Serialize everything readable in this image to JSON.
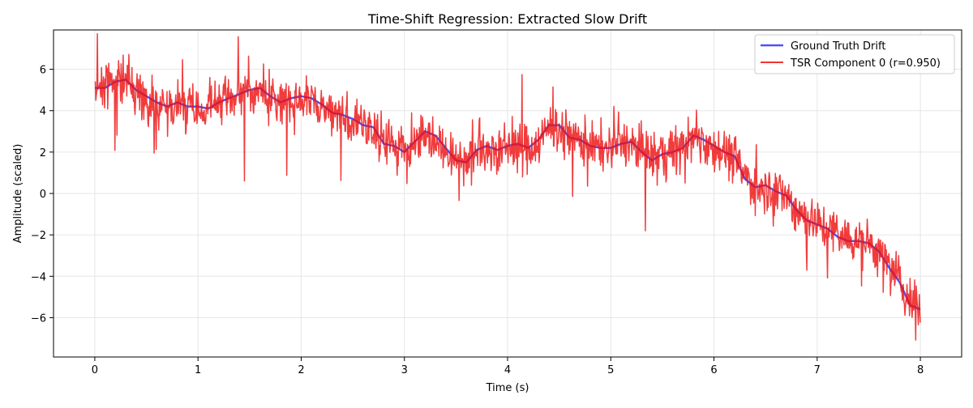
{
  "chart_data": {
    "type": "line",
    "title": "Time-Shift Regression: Extracted Slow Drift",
    "xlabel": "Time (s)",
    "ylabel": "Amplitude (scaled)",
    "xlim": [
      -0.4,
      8.4
    ],
    "ylim": [
      -7.9,
      7.9
    ],
    "grid": true,
    "legend_position": "top-right",
    "x_ticks": [
      0,
      1,
      2,
      3,
      4,
      5,
      6,
      7,
      8
    ],
    "y_ticks": [
      -6,
      -4,
      -2,
      0,
      2,
      4,
      6
    ],
    "x_tick_labels": [
      "0",
      "1",
      "2",
      "3",
      "4",
      "5",
      "6",
      "7",
      "8"
    ],
    "y_tick_labels": [
      "−6",
      "−4",
      "−2",
      "0",
      "2",
      "4",
      "6"
    ],
    "series": [
      {
        "name": "Ground Truth Drift",
        "color": "#3333ee",
        "style": "smooth",
        "x": [
          0,
          0.1,
          0.2,
          0.3,
          0.4,
          0.5,
          0.6,
          0.7,
          0.8,
          0.9,
          1.0,
          1.1,
          1.2,
          1.3,
          1.4,
          1.5,
          1.6,
          1.7,
          1.8,
          1.9,
          2.0,
          2.1,
          2.2,
          2.3,
          2.4,
          2.5,
          2.6,
          2.7,
          2.8,
          2.9,
          3.0,
          3.1,
          3.2,
          3.3,
          3.4,
          3.5,
          3.6,
          3.7,
          3.8,
          3.9,
          4.0,
          4.1,
          4.2,
          4.3,
          4.4,
          4.5,
          4.6,
          4.7,
          4.8,
          4.9,
          5.0,
          5.1,
          5.2,
          5.3,
          5.4,
          5.5,
          5.6,
          5.7,
          5.8,
          5.9,
          6.0,
          6.1,
          6.2,
          6.3,
          6.4,
          6.5,
          6.6,
          6.7,
          6.8,
          6.9,
          7.0,
          7.1,
          7.2,
          7.3,
          7.4,
          7.5,
          7.6,
          7.7,
          7.8,
          7.9,
          8.0
        ],
        "y": [
          5.1,
          5.1,
          5.4,
          5.5,
          5.0,
          4.7,
          4.4,
          4.2,
          4.4,
          4.2,
          4.2,
          4.1,
          4.4,
          4.6,
          4.8,
          5.0,
          5.1,
          4.7,
          4.4,
          4.6,
          4.7,
          4.6,
          4.3,
          3.9,
          3.8,
          3.6,
          3.3,
          3.2,
          2.4,
          2.3,
          2.0,
          2.5,
          3.0,
          2.8,
          2.2,
          1.6,
          1.5,
          2.1,
          2.3,
          2.1,
          2.3,
          2.4,
          2.2,
          2.6,
          3.3,
          3.3,
          2.7,
          2.6,
          2.3,
          2.2,
          2.2,
          2.4,
          2.5,
          2.0,
          1.6,
          1.9,
          2.0,
          2.2,
          2.8,
          2.6,
          2.3,
          2.0,
          1.8,
          0.7,
          0.3,
          0.4,
          0.1,
          -0.1,
          -0.8,
          -1.3,
          -1.5,
          -1.7,
          -2.1,
          -2.3,
          -2.3,
          -2.4,
          -2.8,
          -3.6,
          -4.3,
          -5.4,
          -5.6
        ]
      },
      {
        "name": "TSR Component 0 (r=0.950)",
        "color": "#ee1111",
        "style": "noisy",
        "x": [
          0,
          0.1,
          0.2,
          0.3,
          0.4,
          0.5,
          0.6,
          0.7,
          0.8,
          0.9,
          1.0,
          1.1,
          1.2,
          1.3,
          1.4,
          1.5,
          1.6,
          1.7,
          1.8,
          1.9,
          2.0,
          2.1,
          2.2,
          2.3,
          2.4,
          2.5,
          2.6,
          2.7,
          2.8,
          2.9,
          3.0,
          3.1,
          3.2,
          3.3,
          3.4,
          3.5,
          3.6,
          3.7,
          3.8,
          3.9,
          4.0,
          4.1,
          4.2,
          4.3,
          4.4,
          4.5,
          4.6,
          4.7,
          4.8,
          4.9,
          5.0,
          5.1,
          5.2,
          5.3,
          5.4,
          5.5,
          5.6,
          5.7,
          5.8,
          5.9,
          6.0,
          6.1,
          6.2,
          6.3,
          6.4,
          6.5,
          6.6,
          6.7,
          6.8,
          6.9,
          7.0,
          7.1,
          7.2,
          7.3,
          7.4,
          7.5,
          7.6,
          7.7,
          7.8,
          7.9,
          8.0
        ],
        "y": [
          5.0,
          5.2,
          5.4,
          5.4,
          5.0,
          4.6,
          4.3,
          4.2,
          4.3,
          4.2,
          4.1,
          4.1,
          4.3,
          4.5,
          4.8,
          4.9,
          5.0,
          4.6,
          4.4,
          4.5,
          4.6,
          4.5,
          4.2,
          3.9,
          3.7,
          3.5,
          3.3,
          3.1,
          2.5,
          2.3,
          2.1,
          2.5,
          2.9,
          2.7,
          2.2,
          1.7,
          1.6,
          2.0,
          2.2,
          2.1,
          2.3,
          2.3,
          2.2,
          2.5,
          3.1,
          3.2,
          2.7,
          2.5,
          2.3,
          2.2,
          2.2,
          2.4,
          2.4,
          2.0,
          1.7,
          1.9,
          2.0,
          2.2,
          2.7,
          2.5,
          2.3,
          2.0,
          1.7,
          0.8,
          0.4,
          0.4,
          0.1,
          -0.1,
          -0.8,
          -1.2,
          -1.4,
          -1.7,
          -2.0,
          -2.2,
          -2.3,
          -2.4,
          -2.8,
          -3.5,
          -4.2,
          -5.2,
          -5.5
        ]
      }
    ],
    "legend": [
      {
        "label": "Ground Truth Drift",
        "color": "#3333ee"
      },
      {
        "label": "TSR Component 0 (r=0.950)",
        "color": "#ee1111"
      }
    ]
  }
}
